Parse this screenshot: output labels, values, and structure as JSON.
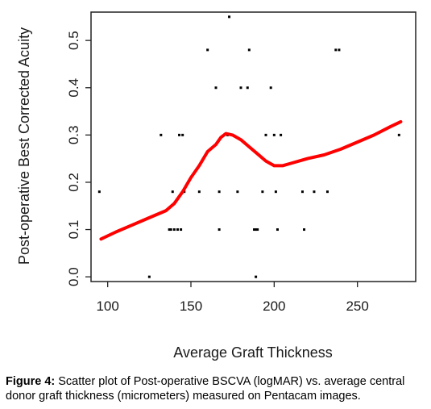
{
  "chart_data": {
    "type": "scatter",
    "xlabel": "Average Graft Thickness",
    "ylabel": "Post-operative Best Corrected Acuity",
    "xlim": [
      90,
      285
    ],
    "ylim": [
      -0.01,
      0.56
    ],
    "x_ticks": [
      "100",
      "150",
      "200",
      "250"
    ],
    "x_tick_values": [
      100,
      150,
      200,
      250
    ],
    "y_ticks": [
      "0.0",
      "0.1",
      "0.2",
      "0.3",
      "0.4",
      "0.5"
    ],
    "y_tick_values": [
      0.0,
      0.1,
      0.2,
      0.3,
      0.4,
      0.5
    ],
    "grid": false,
    "points": [
      {
        "x": 95,
        "y": 0.18
      },
      {
        "x": 125,
        "y": 0.0
      },
      {
        "x": 132,
        "y": 0.3
      },
      {
        "x": 137,
        "y": 0.1
      },
      {
        "x": 138,
        "y": 0.1
      },
      {
        "x": 139,
        "y": 0.18
      },
      {
        "x": 140,
        "y": 0.1
      },
      {
        "x": 142,
        "y": 0.1
      },
      {
        "x": 143,
        "y": 0.3
      },
      {
        "x": 144,
        "y": 0.1
      },
      {
        "x": 145,
        "y": 0.3
      },
      {
        "x": 146,
        "y": 0.18
      },
      {
        "x": 155,
        "y": 0.18
      },
      {
        "x": 160,
        "y": 0.48
      },
      {
        "x": 165,
        "y": 0.4
      },
      {
        "x": 167,
        "y": 0.18
      },
      {
        "x": 167,
        "y": 0.1
      },
      {
        "x": 172,
        "y": 0.3
      },
      {
        "x": 173,
        "y": 0.55
      },
      {
        "x": 178,
        "y": 0.18
      },
      {
        "x": 180,
        "y": 0.4
      },
      {
        "x": 184,
        "y": 0.4
      },
      {
        "x": 185,
        "y": 0.48
      },
      {
        "x": 188,
        "y": 0.1
      },
      {
        "x": 189,
        "y": 0.0
      },
      {
        "x": 189,
        "y": 0.1
      },
      {
        "x": 190,
        "y": 0.1
      },
      {
        "x": 193,
        "y": 0.18
      },
      {
        "x": 195,
        "y": 0.3
      },
      {
        "x": 198,
        "y": 0.4
      },
      {
        "x": 200,
        "y": 0.3
      },
      {
        "x": 201,
        "y": 0.18
      },
      {
        "x": 202,
        "y": 0.1
      },
      {
        "x": 204,
        "y": 0.3
      },
      {
        "x": 217,
        "y": 0.18
      },
      {
        "x": 218,
        "y": 0.1
      },
      {
        "x": 224,
        "y": 0.18
      },
      {
        "x": 232,
        "y": 0.18
      },
      {
        "x": 237,
        "y": 0.48
      },
      {
        "x": 239,
        "y": 0.48
      },
      {
        "x": 275,
        "y": 0.3
      }
    ],
    "smooth_curve": [
      {
        "x": 96,
        "y": 0.08
      },
      {
        "x": 105,
        "y": 0.095
      },
      {
        "x": 115,
        "y": 0.11
      },
      {
        "x": 125,
        "y": 0.125
      },
      {
        "x": 135,
        "y": 0.14
      },
      {
        "x": 140,
        "y": 0.155
      },
      {
        "x": 145,
        "y": 0.18
      },
      {
        "x": 150,
        "y": 0.21
      },
      {
        "x": 155,
        "y": 0.235
      },
      {
        "x": 160,
        "y": 0.265
      },
      {
        "x": 165,
        "y": 0.28
      },
      {
        "x": 168,
        "y": 0.295
      },
      {
        "x": 171,
        "y": 0.303
      },
      {
        "x": 175,
        "y": 0.3
      },
      {
        "x": 180,
        "y": 0.29
      },
      {
        "x": 185,
        "y": 0.275
      },
      {
        "x": 190,
        "y": 0.26
      },
      {
        "x": 195,
        "y": 0.245
      },
      {
        "x": 200,
        "y": 0.235
      },
      {
        "x": 205,
        "y": 0.235
      },
      {
        "x": 210,
        "y": 0.24
      },
      {
        "x": 220,
        "y": 0.25
      },
      {
        "x": 230,
        "y": 0.258
      },
      {
        "x": 240,
        "y": 0.27
      },
      {
        "x": 250,
        "y": 0.285
      },
      {
        "x": 260,
        "y": 0.3
      },
      {
        "x": 270,
        "y": 0.318
      },
      {
        "x": 276,
        "y": 0.328
      }
    ],
    "point_color": "#000000",
    "curve_color": "#ff0000"
  },
  "caption": {
    "label": "Figure 4:",
    "text": " Scatter plot of Post-operative BSCVA (logMAR) vs. average central donor graft thickness (micrometers) measured on Pentacam images."
  }
}
